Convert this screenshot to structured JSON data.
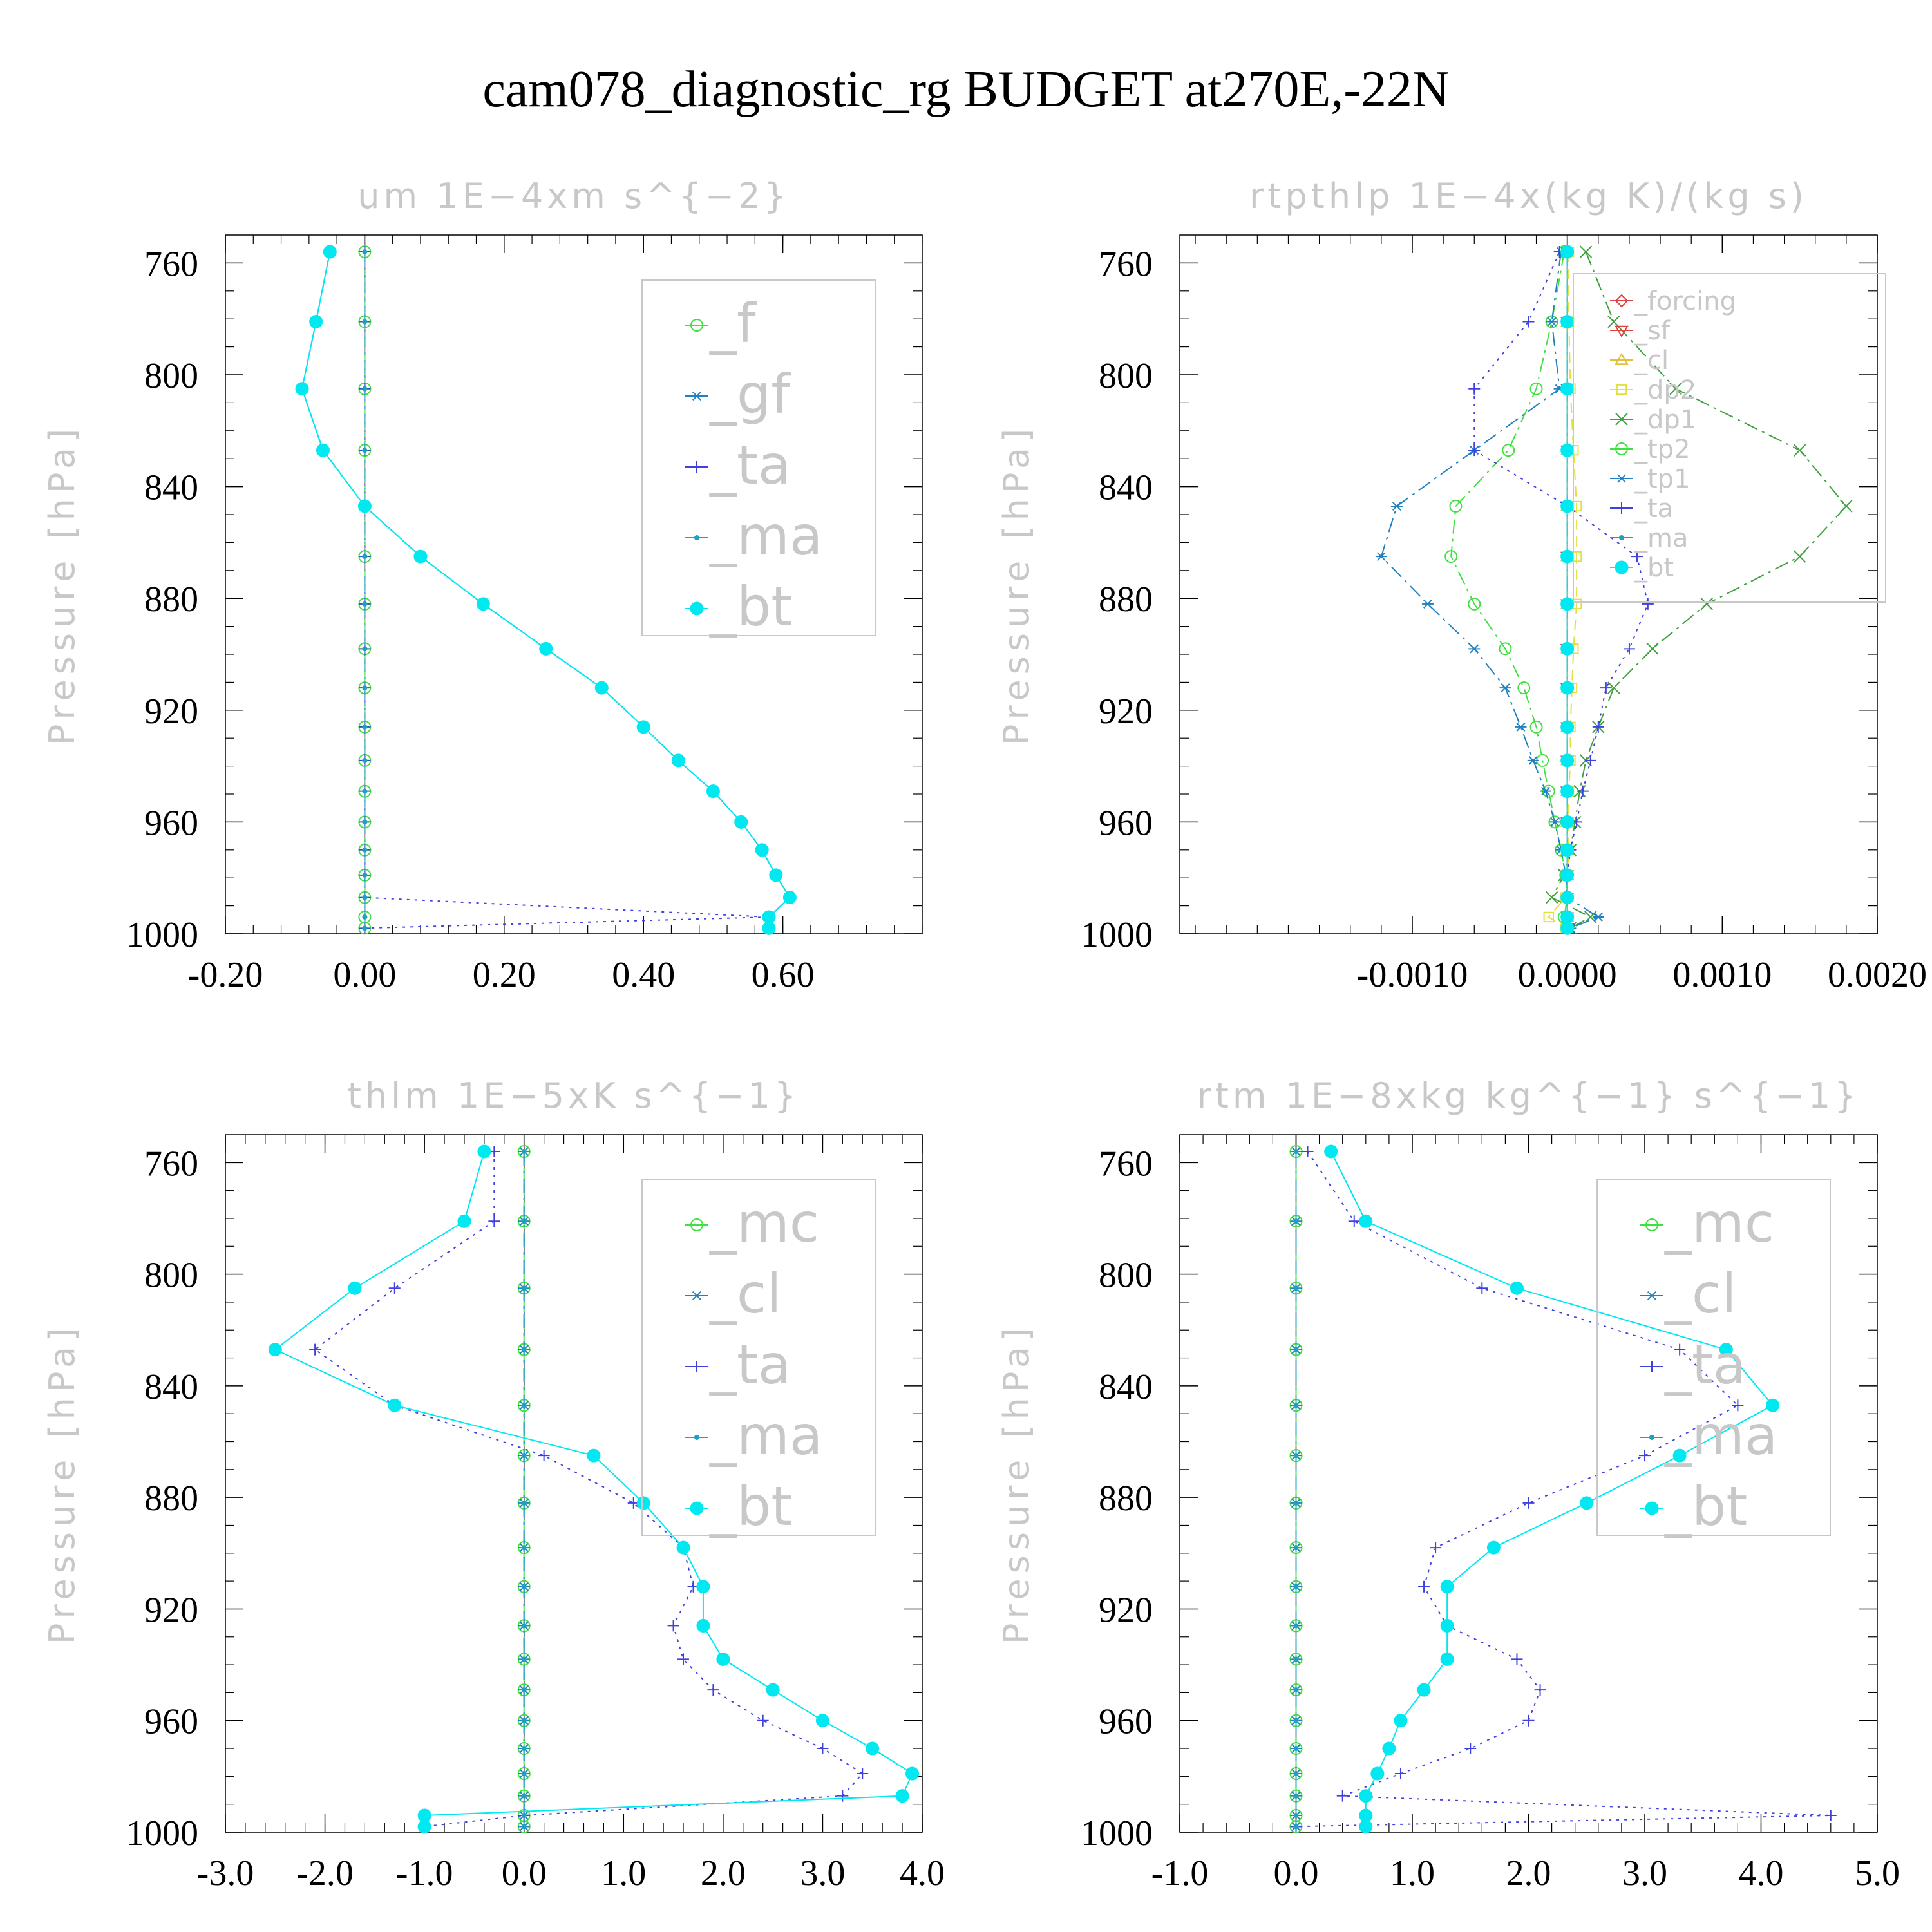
{
  "figure_title": "cam078_diagnostic_rg  BUDGET at270E,-22N",
  "chart_data": [
    {
      "type": "line",
      "title": "um   1E−4xm s^{−2}",
      "ylabel": "Pressure [hPa]",
      "xlim": [
        -0.2,
        0.8
      ],
      "ylim": [
        1000,
        750
      ],
      "xticks": [
        -0.2,
        0.0,
        0.2,
        0.4,
        0.6
      ],
      "xtick_labels": [
        "-0.20",
        "0.00",
        "0.20",
        "0.40",
        "0.60"
      ],
      "yticks": [
        760,
        800,
        840,
        880,
        920,
        960,
        1000
      ],
      "ytick_labels": [
        "760",
        "800",
        "840",
        "880",
        "920",
        "960",
        "1000"
      ],
      "legend_position": "top-right",
      "legend_size": "large",
      "levels": [
        756,
        781,
        805,
        827,
        847,
        865,
        882,
        898,
        912,
        926,
        938,
        949,
        960,
        970,
        979,
        987,
        994,
        998
      ],
      "series": [
        {
          "name": "_f",
          "color": "#40e040",
          "marker": "circle-open",
          "dash": "dash",
          "values": [
            0,
            0,
            0,
            0,
            0,
            0,
            0,
            0,
            0,
            0,
            0,
            0,
            0,
            0,
            0,
            0,
            0,
            0
          ]
        },
        {
          "name": "_gf",
          "color": "#2080c0",
          "marker": "asterisk",
          "dash": "dashdot",
          "values": [
            -0.05,
            -0.07,
            -0.09,
            -0.06,
            0.0,
            0.08,
            0.17,
            0.26,
            0.34,
            0.4,
            0.45,
            0.5,
            0.54,
            0.57,
            0.59,
            0.61,
            0.58,
            0.58
          ]
        },
        {
          "name": "_ta",
          "color": "#4040e0",
          "marker": "plus",
          "dash": "dot",
          "values": [
            0,
            0,
            0,
            0,
            0,
            0,
            0,
            0,
            0,
            0,
            0,
            0,
            0,
            0,
            0,
            0,
            0.58,
            0.0
          ]
        },
        {
          "name": "_ma",
          "color": "#20a0c0",
          "marker": "dot",
          "dash": "dashdot",
          "values": [
            0,
            0,
            0,
            0,
            0,
            0,
            0,
            0,
            0,
            0,
            0,
            0,
            0,
            0,
            0,
            0,
            0,
            0
          ]
        },
        {
          "name": "_bt",
          "color": "#00e8f0",
          "marker": "circle-filled",
          "dash": "solid",
          "values": [
            -0.05,
            -0.07,
            -0.09,
            -0.06,
            0.0,
            0.08,
            0.17,
            0.26,
            0.34,
            0.4,
            0.45,
            0.5,
            0.54,
            0.57,
            0.59,
            0.61,
            0.58,
            0.58
          ]
        }
      ]
    },
    {
      "type": "line",
      "title": "rtpthlp   1E−4x(kg K)/(kg s)",
      "ylabel": "Pressure [hPa]",
      "xlim": [
        -0.0025,
        0.002
      ],
      "ylim": [
        1000,
        750
      ],
      "xticks": [
        -0.001,
        0.0,
        0.001,
        0.002
      ],
      "xtick_labels": [
        "-0.0010",
        "0.0000",
        "0.0010",
        "0.0020"
      ],
      "yticks": [
        760,
        800,
        840,
        880,
        920,
        960,
        1000
      ],
      "ytick_labels": [
        "760",
        "800",
        "840",
        "880",
        "920",
        "960",
        "1000"
      ],
      "legend_position": "top-right",
      "legend_size": "small",
      "levels": [
        756,
        781,
        805,
        827,
        847,
        865,
        882,
        898,
        912,
        926,
        938,
        949,
        960,
        970,
        979,
        987,
        994,
        998
      ],
      "series": [
        {
          "name": "_forcing",
          "color": "#e04040",
          "marker": "diamond-open",
          "dash": "solid",
          "values": [
            0,
            0,
            0,
            0,
            0,
            0,
            0,
            0,
            0,
            0,
            0,
            0,
            0,
            0,
            0,
            0,
            0,
            0
          ]
        },
        {
          "name": "_sf",
          "color": "#e04040",
          "marker": "triangle-down-open",
          "dash": "dashdot",
          "values": [
            0,
            0,
            0,
            0,
            0,
            0,
            0,
            0,
            0,
            0,
            0,
            0,
            0,
            0,
            0,
            0,
            0,
            0
          ]
        },
        {
          "name": "_cl",
          "color": "#e0c040",
          "marker": "triangle-up-open",
          "dash": "dash",
          "values": [
            0,
            0,
            0,
            0,
            0,
            0,
            0,
            0,
            0,
            0,
            0,
            0,
            0,
            0,
            0,
            0,
            0,
            0
          ]
        },
        {
          "name": "_dp2",
          "color": "#e0e040",
          "marker": "square-open",
          "dash": "dash",
          "values": [
            1e-05,
            1e-05,
            2e-05,
            4e-05,
            6e-05,
            6e-05,
            6e-05,
            4e-05,
            3e-05,
            2e-05,
            2e-05,
            1e-05,
            1e-05,
            1e-05,
            0.0,
            -1e-05,
            -0.00012,
            -1e-05
          ]
        },
        {
          "name": "_dp1",
          "color": "#40a040",
          "marker": "x",
          "dash": "dashdot",
          "values": [
            0.00012,
            0.0003,
            0.0007,
            0.0015,
            0.0018,
            0.0015,
            0.0009,
            0.00055,
            0.0003,
            0.0002,
            0.00012,
            8e-05,
            5e-05,
            2e-05,
            -2e-05,
            -0.0001,
            0.00015,
            2e-05
          ]
        },
        {
          "name": "_tp2",
          "color": "#40e040",
          "marker": "circle-open",
          "dash": "dashdot",
          "values": [
            -2e-05,
            -0.0001,
            -0.0002,
            -0.00038,
            -0.00072,
            -0.00075,
            -0.0006,
            -0.0004,
            -0.00028,
            -0.0002,
            -0.00016,
            -0.00012,
            -8e-05,
            -4e-05,
            -1e-05,
            0.0,
            -2e-05,
            0.0
          ]
        },
        {
          "name": "_tp1",
          "color": "#2080c0",
          "marker": "asterisk",
          "dash": "dashdot",
          "values": [
            -4e-05,
            -0.0001,
            -5e-05,
            -0.0006,
            -0.0011,
            -0.0012,
            -0.0009,
            -0.0006,
            -0.0004,
            -0.0003,
            -0.00022,
            -0.00014,
            -8e-05,
            -4e-05,
            -1e-05,
            0.0,
            0.0002,
            2e-05
          ]
        },
        {
          "name": "_ta",
          "color": "#4040e0",
          "marker": "plus",
          "dash": "dot",
          "values": [
            -5e-05,
            -0.00025,
            -0.0006,
            -0.0006,
            0.0,
            0.00045,
            0.00052,
            0.0004,
            0.00025,
            0.0002,
            0.00015,
            0.0001,
            6e-05,
            2e-05,
            0.0,
            0.0,
            0.0,
            0.0
          ]
        },
        {
          "name": "_ma",
          "color": "#20a0c0",
          "marker": "dot",
          "dash": "dashdot",
          "values": [
            0,
            0,
            0,
            0,
            0,
            0,
            0,
            0,
            0,
            0,
            0,
            0,
            0,
            0,
            0,
            0,
            0,
            0
          ]
        },
        {
          "name": "_bt",
          "color": "#00e8f0",
          "marker": "circle-filled",
          "dash": "solid",
          "values": [
            0,
            0,
            0,
            0,
            0,
            0,
            0,
            0,
            0,
            0,
            0,
            0,
            0,
            0,
            0,
            0,
            0,
            0
          ]
        }
      ]
    },
    {
      "type": "line",
      "title": "thlm   1E−5xK s^{−1}",
      "ylabel": "Pressure [hPa]",
      "xlim": [
        -3.0,
        4.0
      ],
      "ylim": [
        1000,
        750
      ],
      "xticks": [
        -3.0,
        -2.0,
        -1.0,
        0.0,
        1.0,
        2.0,
        3.0,
        4.0
      ],
      "xtick_labels": [
        "-3.0",
        "-2.0",
        "-1.0",
        "0.0",
        "1.0",
        "2.0",
        "3.0",
        "4.0"
      ],
      "yticks": [
        760,
        800,
        840,
        880,
        920,
        960,
        1000
      ],
      "ytick_labels": [
        "760",
        "800",
        "840",
        "880",
        "920",
        "960",
        "1000"
      ],
      "legend_position": "top-right",
      "legend_size": "large",
      "levels": [
        756,
        781,
        805,
        827,
        847,
        865,
        882,
        898,
        912,
        926,
        938,
        949,
        960,
        970,
        979,
        987,
        994,
        998
      ],
      "series": [
        {
          "name": "_mc",
          "color": "#40e040",
          "marker": "circle-open",
          "dash": "dash",
          "values": [
            0,
            0,
            0,
            0,
            0,
            0,
            0,
            0,
            0,
            0,
            0,
            0,
            0,
            0,
            0,
            0,
            0,
            0
          ]
        },
        {
          "name": "_cl",
          "color": "#2080c0",
          "marker": "asterisk",
          "dash": "dashdot",
          "values": [
            0,
            0,
            0,
            0,
            0,
            0,
            0,
            0,
            0,
            0,
            0,
            0,
            0,
            0,
            0,
            0,
            0,
            0
          ]
        },
        {
          "name": "_ta",
          "color": "#4040e0",
          "marker": "plus",
          "dash": "dot",
          "values": [
            -0.3,
            -0.3,
            -1.3,
            -2.1,
            -1.3,
            0.2,
            1.1,
            1.6,
            1.7,
            1.5,
            1.6,
            1.9,
            2.4,
            3.0,
            3.4,
            3.2,
            0.0,
            -1.0
          ]
        },
        {
          "name": "_ma",
          "color": "#20a0c0",
          "marker": "dot",
          "dash": "dashdot",
          "values": [
            0,
            0,
            0,
            0,
            0,
            0,
            0,
            0,
            0,
            0,
            0,
            0,
            0,
            0,
            0,
            0,
            0,
            0
          ]
        },
        {
          "name": "_bt",
          "color": "#00e8f0",
          "marker": "circle-filled",
          "dash": "solid",
          "values": [
            -0.4,
            -0.6,
            -1.7,
            -2.5,
            -1.3,
            0.7,
            1.2,
            1.6,
            1.8,
            1.8,
            2.0,
            2.5,
            3.0,
            3.5,
            3.9,
            3.8,
            -1.0,
            -1.0
          ]
        }
      ]
    },
    {
      "type": "line",
      "title": "rtm   1E−8xkg kg^{−1} s^{−1}",
      "ylabel": "Pressure [hPa]",
      "xlim": [
        -1.0,
        5.0
      ],
      "ylim": [
        1000,
        750
      ],
      "xticks": [
        -1.0,
        0.0,
        1.0,
        2.0,
        3.0,
        4.0,
        5.0
      ],
      "xtick_labels": [
        "-1.0",
        "0.0",
        "1.0",
        "2.0",
        "3.0",
        "4.0",
        "5.0"
      ],
      "yticks": [
        760,
        800,
        840,
        880,
        920,
        960,
        1000
      ],
      "ytick_labels": [
        "760",
        "800",
        "840",
        "880",
        "920",
        "960",
        "1000"
      ],
      "legend_position": "top-right",
      "legend_size": "large",
      "levels": [
        756,
        781,
        805,
        827,
        847,
        865,
        882,
        898,
        912,
        926,
        938,
        949,
        960,
        970,
        979,
        987,
        994,
        998
      ],
      "series": [
        {
          "name": "_mc",
          "color": "#40e040",
          "marker": "circle-open",
          "dash": "dash",
          "values": [
            0,
            0,
            0,
            0,
            0,
            0,
            0,
            0,
            0,
            0,
            0,
            0,
            0,
            0,
            0,
            0,
            0,
            0
          ]
        },
        {
          "name": "_cl",
          "color": "#2080c0",
          "marker": "asterisk",
          "dash": "dashdot",
          "values": [
            0,
            0,
            0,
            0,
            0,
            0,
            0,
            0,
            0,
            0,
            0,
            0,
            0,
            0,
            0,
            0,
            0,
            0
          ]
        },
        {
          "name": "_ta",
          "color": "#4040e0",
          "marker": "plus",
          "dash": "dot",
          "values": [
            0.1,
            0.5,
            1.6,
            3.3,
            3.8,
            3.0,
            2.0,
            1.2,
            1.1,
            1.3,
            1.9,
            2.1,
            2.0,
            1.5,
            0.9,
            0.4,
            4.6,
            0.0
          ]
        },
        {
          "name": "_ma",
          "color": "#20a0c0",
          "marker": "dot",
          "dash": "dashdot",
          "values": [
            0,
            0,
            0,
            0,
            0,
            0,
            0,
            0,
            0,
            0,
            0,
            0,
            0,
            0,
            0,
            0,
            0,
            0
          ]
        },
        {
          "name": "_bt",
          "color": "#00e8f0",
          "marker": "circle-filled",
          "dash": "solid",
          "values": [
            0.3,
            0.6,
            1.9,
            3.7,
            4.1,
            3.3,
            2.5,
            1.7,
            1.3,
            1.3,
            1.3,
            1.1,
            0.9,
            0.8,
            0.7,
            0.6,
            0.6,
            0.6
          ]
        }
      ]
    }
  ]
}
